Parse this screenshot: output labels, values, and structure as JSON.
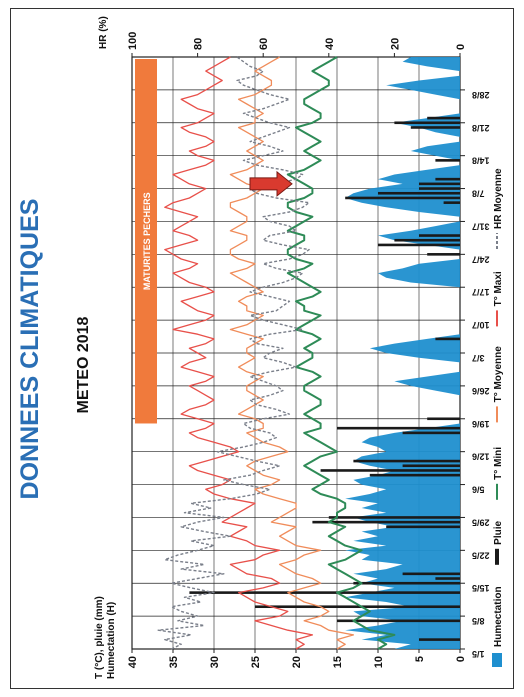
{
  "page": {
    "title": "DONNEES CLIMATIQUES",
    "subtitle": "METEO 2018",
    "banner": "MATURITES PECHERS"
  },
  "axes": {
    "left_title_line1": "T (°C), pluie (mm)",
    "left_title_line2": "Humectation (H)",
    "right_title": "HR (%)"
  },
  "legend": {
    "humectation": "Humectation",
    "pluie": "Pluie",
    "tmin": "T° Mini",
    "tmoy": "T° Moyenne",
    "tmax": "T° Maxi",
    "hr": "HR Moyenne"
  },
  "colors": {
    "humectation": "#1f8fcf",
    "pluie": "#1a1a1a",
    "tmin": "#2e8b57",
    "tmoy": "#f08c5a",
    "tmax": "#e8504a",
    "hr": "#7a7f8a",
    "banner": "#f07a3c",
    "arrow": "#d93a2f"
  },
  "chart_data": {
    "type": "line",
    "x_labels": [
      "1/5",
      "8/5",
      "15/5",
      "22/5",
      "29/5",
      "5/6",
      "12/6",
      "19/6",
      "26/6",
      "3/7",
      "10/7",
      "17/7",
      "24/7",
      "31/7",
      "7/8",
      "14/8",
      "21/8",
      "28/8"
    ],
    "x_range_days": [
      0,
      126
    ],
    "ylim_left": [
      0,
      40
    ],
    "yticks_left": [
      0,
      5,
      10,
      15,
      20,
      25,
      30,
      35,
      40
    ],
    "ylim_right": [
      0,
      100
    ],
    "yticks_right": [
      0,
      20,
      40,
      60,
      80,
      100
    ],
    "banner_range_days": [
      48,
      127
    ],
    "arrow_day": 99,
    "tmax": [
      20,
      19,
      20,
      18,
      21,
      23,
      25,
      22,
      21,
      23,
      25,
      26,
      27,
      24,
      22,
      23,
      26,
      27,
      28,
      25,
      24,
      22,
      25,
      26,
      28,
      27,
      26,
      29,
      28,
      27,
      26,
      25,
      28,
      30,
      31,
      29,
      28,
      30,
      32,
      33,
      31,
      29,
      27,
      28,
      30,
      32,
      33,
      31,
      30,
      32,
      34,
      33,
      31,
      30,
      31,
      32,
      33,
      31,
      30,
      32,
      34,
      33,
      31,
      32,
      33,
      31,
      30,
      32,
      35,
      33,
      31,
      30,
      32,
      33,
      34,
      32,
      30,
      31,
      33,
      34,
      35,
      33,
      32,
      34,
      35,
      36,
      34,
      32,
      33,
      35,
      34,
      33,
      32,
      34,
      36,
      35,
      33,
      32,
      31,
      33,
      34,
      35,
      33,
      31,
      30,
      32,
      33,
      31,
      30,
      31,
      33,
      34,
      32,
      31,
      30,
      32,
      33,
      34,
      32,
      31,
      30,
      29,
      30,
      31,
      30,
      29,
      28
    ],
    "tmoy": [
      15,
      14,
      15,
      13,
      16,
      17,
      19,
      17,
      16,
      17,
      19,
      20,
      21,
      19,
      17,
      18,
      20,
      21,
      22,
      20,
      19,
      17,
      20,
      21,
      22,
      21,
      20,
      23,
      22,
      21,
      20,
      20,
      22,
      24,
      25,
      23,
      22,
      24,
      25,
      26,
      25,
      23,
      21,
      22,
      24,
      25,
      26,
      24,
      24,
      25,
      27,
      26,
      25,
      24,
      25,
      26,
      26,
      25,
      24,
      26,
      27,
      26,
      25,
      26,
      26,
      25,
      24,
      26,
      28,
      26,
      25,
      24,
      26,
      26,
      27,
      26,
      24,
      25,
      26,
      27,
      28,
      26,
      25,
      27,
      28,
      28,
      27,
      26,
      26,
      28,
      27,
      26,
      26,
      27,
      28,
      28,
      26,
      25,
      24,
      26,
      27,
      28,
      26,
      25,
      24,
      25,
      26,
      25,
      24,
      25,
      26,
      27,
      25,
      25,
      24,
      25,
      26,
      27,
      25,
      24,
      23,
      23,
      24,
      25,
      24,
      23,
      22
    ],
    "tmin": [
      10,
      9,
      10,
      8,
      11,
      12,
      13,
      12,
      11,
      12,
      13,
      14,
      15,
      13,
      12,
      13,
      14,
      15,
      16,
      14,
      13,
      12,
      14,
      15,
      16,
      15,
      14,
      16,
      15,
      15,
      14,
      14,
      15,
      17,
      18,
      17,
      16,
      17,
      18,
      19,
      18,
      17,
      15,
      16,
      17,
      18,
      19,
      17,
      17,
      18,
      19,
      18,
      17,
      17,
      18,
      19,
      19,
      18,
      17,
      18,
      20,
      19,
      18,
      18,
      19,
      18,
      17,
      18,
      20,
      19,
      18,
      17,
      19,
      19,
      20,
      18,
      17,
      18,
      19,
      20,
      21,
      19,
      18,
      20,
      21,
      21,
      20,
      19,
      19,
      21,
      20,
      19,
      18,
      20,
      21,
      21,
      19,
      18,
      18,
      19,
      20,
      21,
      19,
      18,
      17,
      18,
      19,
      18,
      17,
      18,
      19,
      20,
      18,
      17,
      17,
      18,
      19,
      19,
      18,
      17,
      16,
      16,
      17,
      18,
      17,
      16,
      15
    ],
    "hr": [
      88,
      85,
      90,
      82,
      92,
      78,
      86,
      80,
      85,
      88,
      79,
      84,
      75,
      82,
      88,
      80,
      72,
      85,
      78,
      90,
      86,
      80,
      75,
      82,
      70,
      78,
      85,
      80,
      72,
      84,
      76,
      82,
      70,
      62,
      58,
      66,
      72,
      64,
      60,
      55,
      62,
      68,
      74,
      66,
      60,
      56,
      58,
      64,
      66,
      60,
      52,
      56,
      62,
      64,
      58,
      54,
      56,
      60,
      64,
      58,
      50,
      54,
      60,
      58,
      54,
      62,
      64,
      58,
      48,
      54,
      60,
      64,
      56,
      54,
      52,
      58,
      64,
      60,
      54,
      50,
      48,
      56,
      60,
      52,
      48,
      46,
      54,
      60,
      58,
      50,
      52,
      58,
      60,
      52,
      48,
      46,
      56,
      62,
      64,
      56,
      50,
      48,
      54,
      62,
      66,
      60,
      54,
      58,
      64,
      60,
      56,
      52,
      58,
      62,
      66,
      60,
      56,
      52,
      58,
      62,
      66,
      68,
      62,
      60,
      64,
      66,
      68
    ],
    "humectation_days": [
      0,
      1,
      2,
      3,
      4,
      5,
      6,
      7,
      8,
      9,
      10,
      11,
      12,
      13,
      14,
      15,
      16,
      17,
      18,
      19,
      20,
      21,
      22,
      23,
      24,
      25,
      26,
      27,
      28,
      29,
      30,
      31,
      32,
      33,
      34,
      35,
      36,
      37,
      38,
      39,
      40,
      41,
      42,
      43,
      44,
      45,
      46,
      47,
      55,
      56,
      57,
      58,
      62,
      63,
      64,
      65,
      66,
      78,
      79,
      80,
      81,
      82,
      86,
      87,
      88,
      89,
      90,
      93,
      94,
      95,
      96,
      97,
      98,
      99,
      100,
      101,
      102,
      105,
      106,
      107,
      110,
      111,
      112,
      113,
      118,
      119,
      120,
      121,
      124,
      125,
      126
    ],
    "humectation_values": [
      8,
      6,
      12,
      9,
      14,
      10,
      7,
      12,
      13,
      6,
      9,
      14,
      11,
      8,
      12,
      10,
      13,
      9,
      7,
      12,
      11,
      14,
      9,
      13,
      10,
      12,
      8,
      11,
      13,
      9,
      12,
      10,
      14,
      11,
      9,
      12,
      13,
      10,
      8,
      11,
      13,
      12,
      9,
      10,
      12,
      11,
      8,
      4,
      3,
      6,
      8,
      4,
      5,
      9,
      11,
      8,
      4,
      6,
      9,
      10,
      7,
      5,
      4,
      8,
      10,
      6,
      3,
      5,
      9,
      12,
      14,
      13,
      11,
      7,
      10,
      8,
      4,
      3,
      6,
      4,
      3,
      5,
      8,
      4,
      3,
      6,
      9,
      5,
      4,
      7,
      6
    ],
    "pluie_days": [
      2,
      6,
      9,
      12,
      14,
      15,
      16,
      26,
      27,
      28,
      37,
      38,
      39,
      40,
      46,
      47,
      49,
      66,
      84,
      86,
      87,
      88,
      95,
      96,
      97,
      98,
      99,
      100,
      104,
      111,
      112,
      113
    ],
    "pluie_values": [
      5,
      15,
      25,
      33,
      13,
      3,
      7,
      9,
      18,
      16,
      11,
      17,
      7,
      13,
      7,
      15,
      4,
      3,
      4,
      10,
      8,
      5,
      2,
      14,
      10,
      5,
      5,
      3,
      3,
      6,
      8,
      4
    ]
  }
}
